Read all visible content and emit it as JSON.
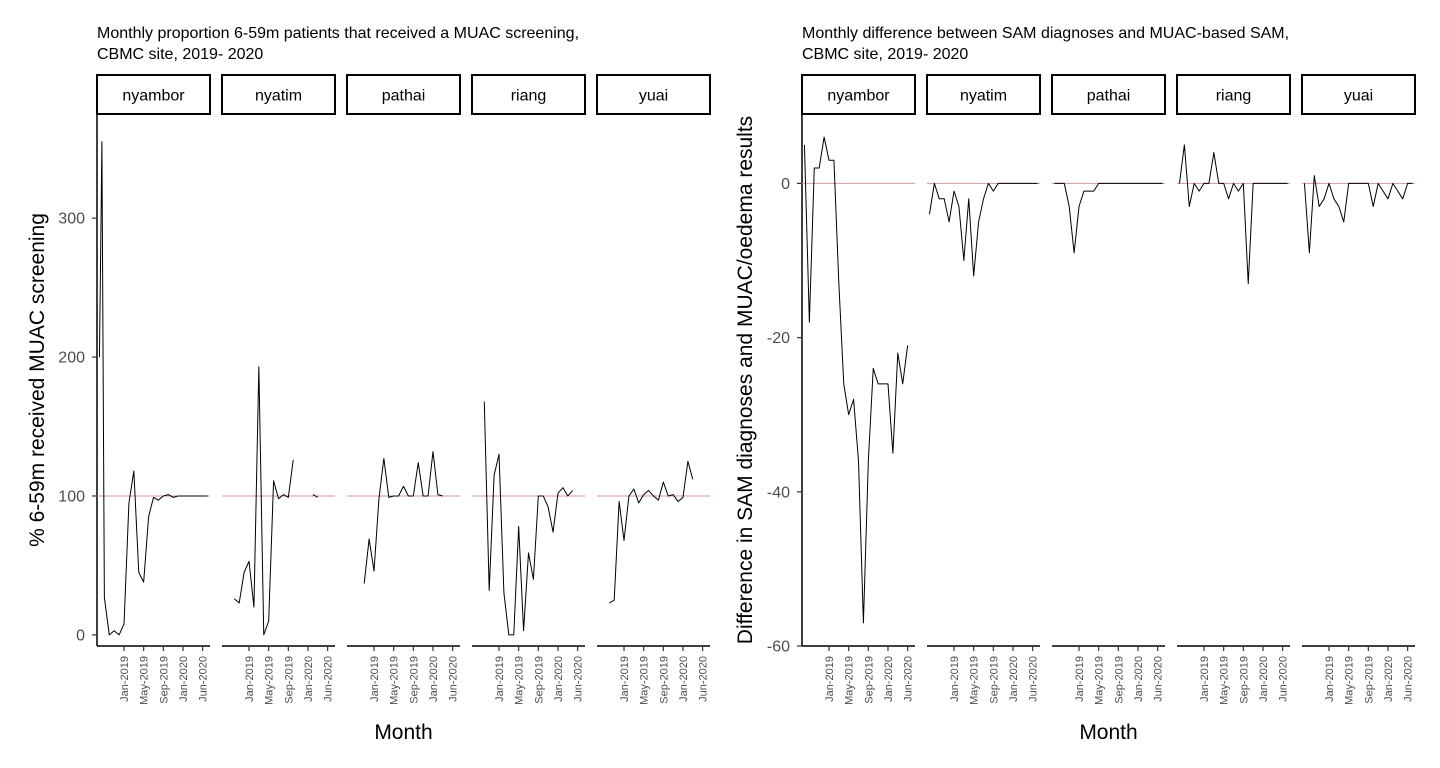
{
  "chart_data": [
    {
      "type": "line",
      "title_line1": "Monthly proportion 6-59m patients that received a MUAC screening,",
      "title_line2": " CBMC site, 2019- 2020",
      "xlabel": "Month",
      "ylabel": "% 6-59m received MUAC screening",
      "ylim": [
        -8,
        375
      ],
      "yticks": [
        0,
        100,
        200,
        300
      ],
      "xlim": [
        -3.5,
        19.5
      ],
      "xticks": [
        2,
        6,
        10,
        14,
        18
      ],
      "xtick_labels": [
        "Jan-2019",
        "May-2019",
        "Sep-2019",
        "Jan-2020",
        "Jun-2020"
      ],
      "reference_line": 100,
      "reference_color": "#d09a9a",
      "line_color": "#000000",
      "facets": [
        {
          "label": "nyambor",
          "x": [
            -3,
            -2.5,
            -2,
            -1,
            0,
            1,
            2,
            3,
            4,
            5,
            6,
            7,
            8,
            9,
            10,
            11,
            12,
            13,
            14,
            15,
            16,
            17,
            18,
            19
          ],
          "y": [
            200,
            355,
            27,
            0,
            3,
            0,
            8,
            95,
            118,
            45,
            38,
            85,
            99,
            97,
            100,
            101,
            99,
            100,
            100,
            100,
            100,
            100,
            100,
            100
          ]
        },
        {
          "label": "nyatim",
          "x": [
            -1,
            0,
            1,
            2,
            3,
            4,
            5,
            6,
            7,
            8,
            9,
            10,
            11,
            12,
            13,
            14,
            15,
            16
          ],
          "y": [
            26,
            23,
            45,
            53,
            20,
            193,
            0,
            10,
            111,
            98,
            101,
            99,
            126,
            null,
            null,
            null,
            101,
            99
          ]
        },
        {
          "label": "pathai",
          "x": [
            0,
            1,
            2,
            3,
            4,
            5,
            6,
            7,
            8,
            9,
            10,
            11,
            12,
            13,
            14,
            15,
            16
          ],
          "y": [
            37,
            69,
            46,
            98,
            127,
            99,
            100,
            100,
            107,
            100,
            100,
            124,
            100,
            100,
            132,
            101,
            100
          ]
        },
        {
          "label": "riang",
          "x": [
            -1,
            0,
            1,
            2,
            3,
            4,
            5,
            6,
            7,
            8,
            9,
            10,
            11,
            12,
            13,
            14,
            15,
            16,
            17
          ],
          "y": [
            168,
            32,
            115,
            130,
            30,
            0,
            0,
            78,
            3,
            59,
            40,
            100,
            100,
            92,
            74,
            102,
            106,
            100,
            104
          ]
        },
        {
          "label": "yuai",
          "x": [
            -1,
            0,
            1,
            2,
            3,
            4,
            5,
            6,
            7,
            8,
            9,
            10,
            11,
            12,
            13,
            14,
            15,
            16
          ],
          "y": [
            23,
            25,
            96,
            68,
            100,
            105,
            95,
            101,
            104,
            100,
            97,
            110,
            100,
            101,
            96,
            99,
            125,
            112
          ]
        }
      ]
    },
    {
      "type": "line",
      "title_line1": "Monthly difference between SAM diagnoses and MUAC-based SAM,",
      "title_line2": " CBMC site, 2019- 2020",
      "xlabel": "Month",
      "ylabel": "Difference in SAM diagnoses and MUAC/oedema results",
      "ylim": [
        -60,
        9
      ],
      "yticks": [
        -60,
        -40,
        -20,
        0
      ],
      "xlim": [
        -3.5,
        19.5
      ],
      "xticks": [
        2,
        6,
        10,
        14,
        18
      ],
      "xtick_labels": [
        "Jan-2019",
        "May-2019",
        "Sep-2019",
        "Jan-2020",
        "Jun-2020"
      ],
      "reference_line": 0,
      "reference_color": "#d09a9a",
      "line_color": "#000000",
      "facets": [
        {
          "label": "nyambor",
          "x": [
            -3,
            -2,
            -1,
            0,
            1,
            2,
            3,
            4,
            5,
            6,
            7,
            8,
            9,
            10,
            11,
            12,
            13,
            14,
            15,
            16,
            17,
            18
          ],
          "y": [
            5,
            -18,
            2,
            2,
            6,
            3,
            3,
            -13,
            -26,
            -30,
            -28,
            -36,
            -57,
            -36,
            -24,
            -26,
            -26,
            -26,
            -35,
            -22,
            -26,
            -21
          ]
        },
        {
          "label": "nyatim",
          "x": [
            -3,
            -2,
            -1,
            0,
            1,
            2,
            3,
            4,
            5,
            6,
            7,
            8,
            9,
            10,
            11,
            12,
            13,
            14,
            15,
            16,
            17,
            18,
            19
          ],
          "y": [
            -4,
            0,
            -2,
            -2,
            -5,
            -1,
            -3,
            -10,
            -2,
            -12,
            -5,
            -2,
            0,
            -1,
            0,
            0,
            0,
            0,
            0,
            0,
            0,
            0,
            0
          ]
        },
        {
          "label": "pathai",
          "x": [
            -3,
            -2,
            -1,
            0,
            1,
            2,
            3,
            4,
            5,
            6,
            7,
            8,
            9,
            10,
            11,
            12,
            13,
            14,
            15,
            16,
            17,
            18,
            19
          ],
          "y": [
            0,
            0,
            0,
            -3,
            -9,
            -3,
            -1,
            -1,
            -1,
            0,
            0,
            0,
            0,
            0,
            0,
            0,
            0,
            0,
            0,
            0,
            0,
            0,
            0
          ]
        },
        {
          "label": "riang",
          "x": [
            -3,
            -2,
            -1,
            0,
            1,
            2,
            3,
            4,
            5,
            6,
            7,
            8,
            9,
            10,
            11,
            12,
            13,
            14,
            15,
            16,
            17,
            18,
            19
          ],
          "y": [
            0,
            5,
            -3,
            0,
            -1,
            0,
            0,
            4,
            0,
            0,
            -2,
            0,
            -1,
            0,
            -13,
            0,
            0,
            0,
            0,
            0,
            0,
            0,
            0
          ]
        },
        {
          "label": "yuai",
          "x": [
            -3,
            -2,
            -1,
            0,
            1,
            2,
            3,
            4,
            5,
            6,
            7,
            8,
            9,
            10,
            11,
            12,
            13,
            14,
            15,
            16,
            17,
            18,
            19
          ],
          "y": [
            0,
            -9,
            1,
            -3,
            -2,
            0,
            -2,
            -3,
            -5,
            0,
            0,
            0,
            0,
            0,
            -3,
            0,
            -1,
            -2,
            0,
            -1,
            -2,
            0,
            0
          ]
        }
      ]
    }
  ]
}
